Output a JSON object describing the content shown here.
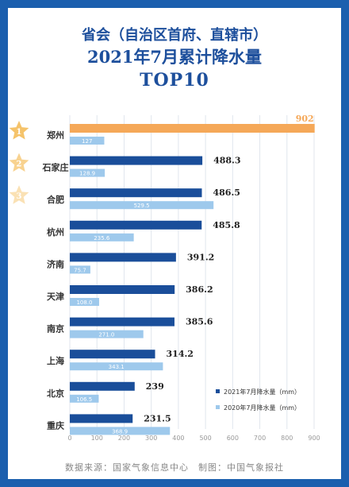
{
  "header": {
    "line1": "省会（自治区首府、直辖市）",
    "line2": "2021年7月累计降水量",
    "line3": "TOP10"
  },
  "colors": {
    "background": "#1b5fae",
    "title": "#1d4f9c",
    "bar_2021": "#1a4e9a",
    "bar_2020": "#9ec9ec",
    "bar_top1": "#f5a858",
    "medal": "#f5c36a",
    "grid": "#e0e6ee"
  },
  "icons": {
    "rank_badge": "star-icon"
  },
  "chart_data": {
    "type": "bar",
    "orientation": "horizontal",
    "categories": [
      "郑州",
      "石家庄",
      "合肥",
      "杭州",
      "济南",
      "天津",
      "南京",
      "上海",
      "北京",
      "重庆"
    ],
    "ranks": [
      "1",
      "2",
      "3"
    ],
    "series": [
      {
        "name": "2021年7月降水量（mm）",
        "values": [
          902,
          488.3,
          486.5,
          485.8,
          391.2,
          386.2,
          385.6,
          314.2,
          239,
          231.5
        ]
      },
      {
        "name": "2020年7月降水量（mm）",
        "values": [
          127,
          128.9,
          529.5,
          235.6,
          75.7,
          108.0,
          271.0,
          343.1,
          106.5,
          368.9
        ]
      }
    ],
    "value_labels_2021": [
      "902",
      "488.3",
      "486.5",
      "485.8",
      "391.2",
      "386.2",
      "385.6",
      "314.2",
      "239",
      "231.5"
    ],
    "value_labels_2020": [
      "127",
      "128.9",
      "529.5",
      "235.6",
      "75.7",
      "108.0",
      "271.0",
      "343.1",
      "106.5",
      "368.9"
    ],
    "xticks": [
      "0",
      "100",
      "200",
      "300",
      "400",
      "500",
      "600",
      "700",
      "800",
      "900"
    ],
    "xlim": [
      0,
      900
    ],
    "grid": true,
    "legend_position": "bottom-right"
  },
  "footer": {
    "source": "数据来源：国家气象信息中心　制图：中国气象报社"
  }
}
